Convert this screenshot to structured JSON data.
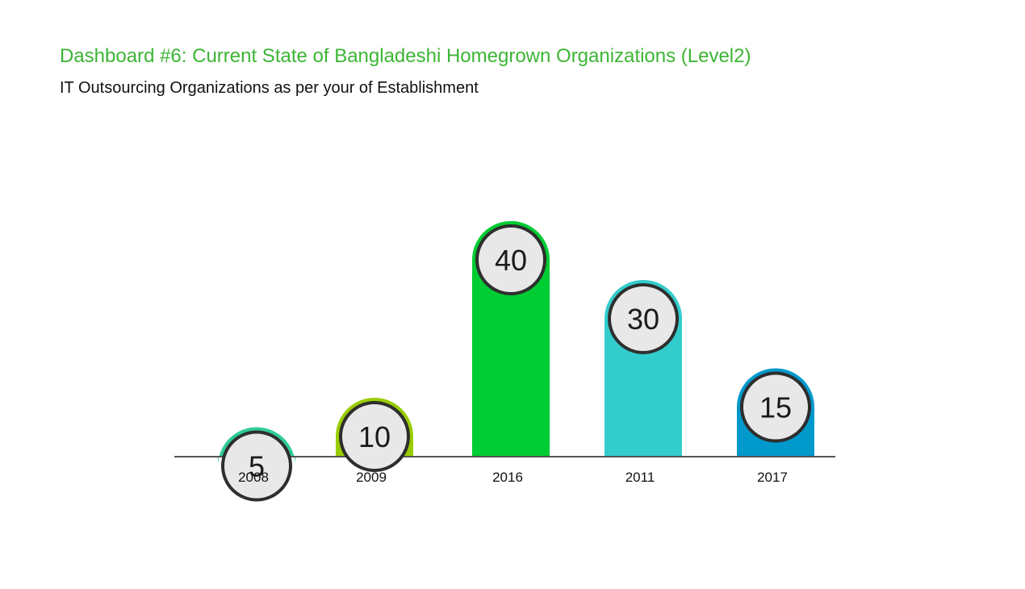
{
  "header": {
    "title": "Dashboard #6: Current State of Bangladeshi Homegrown Organizations (Level2)",
    "subtitle": "IT Outsourcing Organizations as per your of Establishment"
  },
  "colors": {
    "title": "#3db535",
    "subtitle": "#111111",
    "axis": "#555555",
    "badge_fill": "#e8e8e8",
    "badge_stroke": "#2e2e2e"
  },
  "chart_data": {
    "type": "bar",
    "title": "IT Outsourcing Organizations as per your of Establishment",
    "xlabel": "",
    "ylabel": "",
    "categories": [
      "2008",
      "2009",
      "2016",
      "2011",
      "2017"
    ],
    "values": [
      5,
      10,
      40,
      30,
      15
    ],
    "data_labels": [
      "5",
      "10",
      "40",
      "30",
      "15"
    ],
    "bar_colors": [
      "#2ecb96",
      "#99cc00",
      "#00cc33",
      "#33cccc",
      "#0099cc"
    ],
    "grid": false,
    "legend": "none"
  }
}
